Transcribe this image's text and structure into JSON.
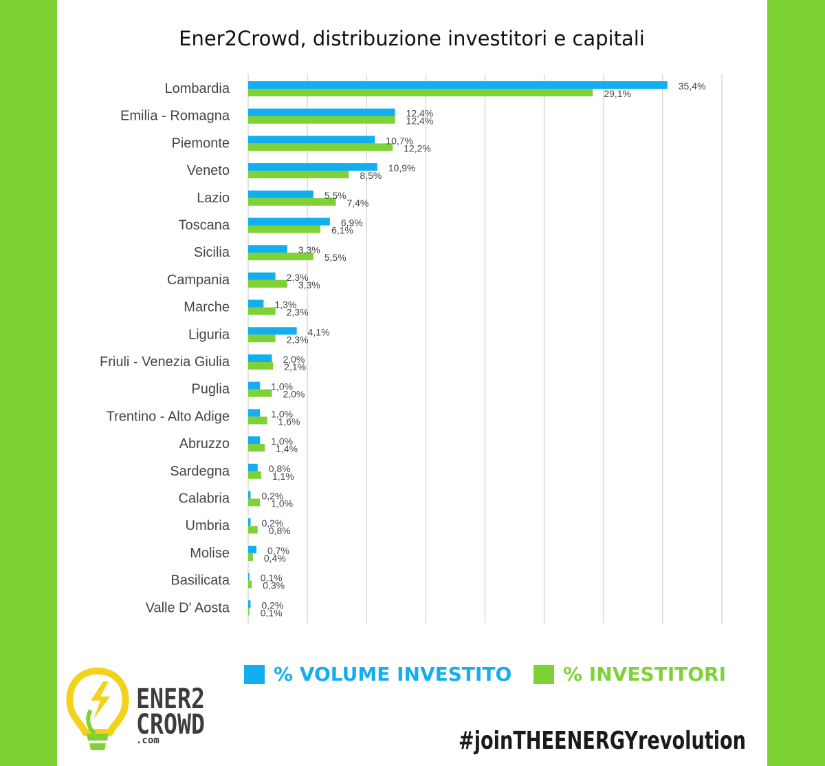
{
  "chart_data": {
    "type": "bar",
    "orientation": "horizontal",
    "title": "Ener2Crowd, distribuzione investitori e capitali",
    "categories": [
      "Lombardia",
      "Emilia - Romagna",
      "Piemonte",
      "Veneto",
      "Lazio",
      "Toscana",
      "Sicilia",
      "Campania",
      "Marche",
      "Liguria",
      "Friuli - Venezia Giulia",
      "Puglia",
      "Trentino - Alto Adige",
      "Abruzzo",
      "Sardegna",
      "Calabria",
      "Umbria",
      "Molise",
      "Basilicata",
      "Valle D' Aosta"
    ],
    "series": [
      {
        "name": "% VOLUME INVESTITO",
        "color": "#13aef0",
        "values": [
          35.4,
          12.4,
          10.7,
          10.9,
          5.5,
          6.9,
          3.3,
          2.3,
          1.3,
          4.1,
          2.0,
          1.0,
          1.0,
          1.0,
          0.8,
          0.2,
          0.2,
          0.7,
          0.1,
          0.2
        ],
        "labels": [
          "35,4%",
          "12,4%",
          "10,7%",
          "10,9%",
          "5,5%",
          "6,9%",
          "3,3%",
          "2,3%",
          "1,3%",
          "4,1%",
          "2,0%",
          "1,0%",
          "1,0%",
          "1,0%",
          "0,8%",
          "0,2%",
          "0,2%",
          "0,7%",
          "0,1%",
          "0,2%"
        ]
      },
      {
        "name": "% INVESTITORI",
        "color": "#7ed236",
        "values": [
          29.1,
          12.4,
          12.2,
          8.5,
          7.4,
          6.1,
          5.5,
          3.3,
          2.3,
          2.3,
          2.1,
          2.0,
          1.6,
          1.4,
          1.1,
          1.0,
          0.8,
          0.4,
          0.3,
          0.1
        ],
        "labels": [
          "29,1%",
          "12,4%",
          "12,2%",
          "8,5%",
          "7,4%",
          "6,1%",
          "5,5%",
          "3,3%",
          "2,3%",
          "2,3%",
          "2,1%",
          "2,0%",
          "1,6%",
          "1,4%",
          "1,1%",
          "1,0%",
          "0,8%",
          "0,4%",
          "0,3%",
          "0,1%"
        ]
      }
    ],
    "xlim": [
      0,
      40
    ],
    "grid": true,
    "legend_position": "bottom"
  },
  "colors": {
    "background": "#7ed236",
    "panel": "#ffffff",
    "volume": "#13aef0",
    "investitori": "#7ed236"
  },
  "legend": {
    "volume": "% VOLUME INVESTITO",
    "investitori": "% INVESTITORI"
  },
  "logo": {
    "line1": "ENER2",
    "line2": "CROWD",
    "line3": ".com",
    "icon": "lightbulb-icon"
  },
  "hashtag": "#joinTHEENERGYrevolution"
}
